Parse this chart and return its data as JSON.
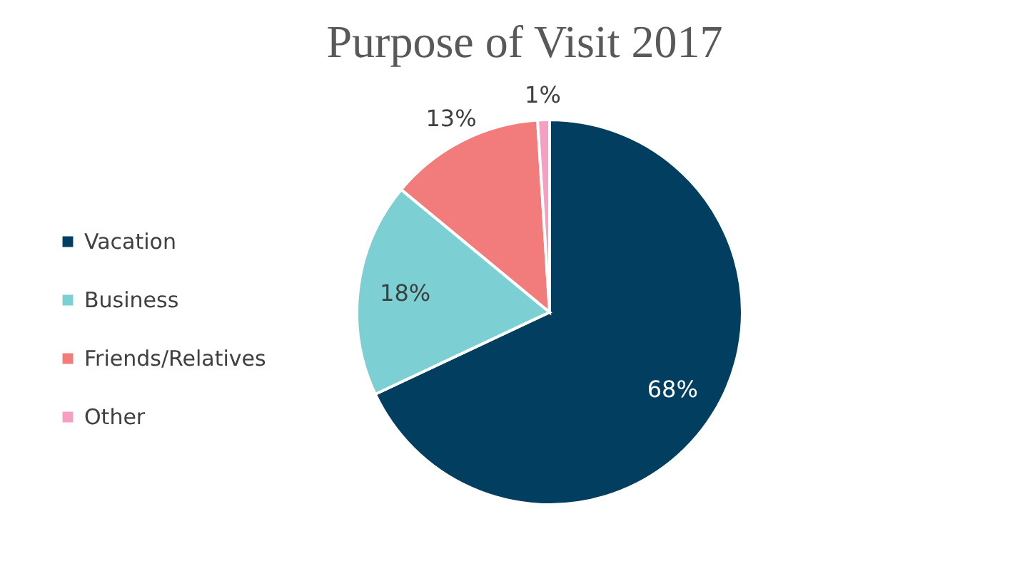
{
  "chart_data": {
    "type": "pie",
    "title": "Purpose of Visit 2017",
    "categories": [
      "Vacation",
      "Business",
      "Friends/Relatives",
      "Other"
    ],
    "values": [
      68,
      18,
      13,
      1
    ],
    "value_labels": [
      "68%",
      "18%",
      "13%",
      "1%"
    ],
    "colors": [
      "#023e5f",
      "#7ccfd2",
      "#f27c7c",
      "#f59fc2"
    ],
    "legend": "left"
  }
}
